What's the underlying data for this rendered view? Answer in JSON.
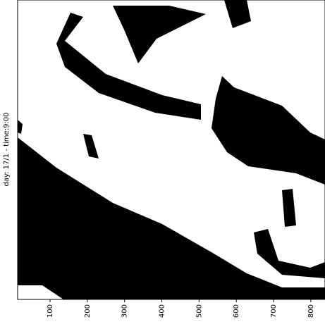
{
  "chart_data": {
    "type": "image",
    "ylabel": "day: 17/1 - time:9:00",
    "xlim": [
      13,
      838
    ],
    "xticks": [
      100,
      200,
      300,
      400,
      500,
      600,
      700,
      800
    ]
  }
}
